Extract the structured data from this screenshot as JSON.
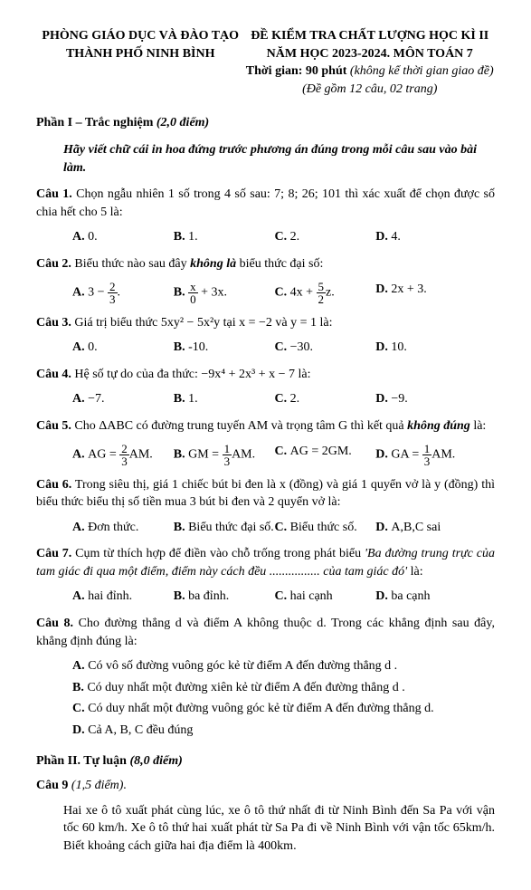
{
  "header": {
    "left1": "PHÒNG GIÁO DỤC VÀ ĐÀO TẠO",
    "left2": "THÀNH PHỐ NINH BÌNH",
    "right1": "ĐỀ KIỂM TRA CHẤT LƯỢNG HỌC KÌ II",
    "right2": "NĂM HỌC 2023-2024. MÔN TOÁN 7",
    "right3a": "Thời gian: 90 phút ",
    "right3b": "(không kể thời gian giao đề)",
    "right4": "(Đề gồm 12 câu, 02 trang)"
  },
  "part1": {
    "title": "Phần I – Trắc nghiệm ",
    "score": "(2,0 điểm)",
    "instr": "Hãy viết chữ cái in hoa đứng trước phương án đúng trong mỗi câu sau vào bài làm."
  },
  "q1": {
    "label": "Câu 1.",
    "text": " Chọn ngẫu nhiên 1 số trong 4 số sau: 7; 8; 26; 101 thì xác xuất để chọn được số chia hết cho 5 là:",
    "a": "0.",
    "b": "1.",
    "c": "2.",
    "d": "4."
  },
  "q2": {
    "label": "Câu 2.",
    "text": " Biểu thức nào sau đây ",
    "em": "không là",
    "text2": " biểu thức đại số:",
    "d": "2x + 3."
  },
  "q3": {
    "label": "Câu 3.",
    "text": " Giá trị biểu thức  5xy² − 5x²y tại  x = −2  và  y = 1 là:",
    "a": "0.",
    "b": "-10.",
    "c": "−30.",
    "d": "10."
  },
  "q4": {
    "label": "Câu 4.",
    "text": " Hệ số tự do của đa thức:  −9x⁴ + 2x³ + x − 7  là:",
    "a": "−7.",
    "b": "1.",
    "c": "2.",
    "d": "−9."
  },
  "q5": {
    "label": "Câu 5.",
    "text": " Cho ΔABC có đường trung tuyến AM và trọng tâm G thì kết quả ",
    "em": "không đúng",
    "text2": " là:",
    "c": "AG = 2GM."
  },
  "q6": {
    "label": "Câu 6.",
    "text": " Trong siêu thị, giá 1 chiếc bút bi đen là x (đồng) và giá 1 quyển vở là y (đồng) thì biểu thức biểu thị số tiền mua 3 bút bi đen và 2 quyển vở là:",
    "a": "Đơn thức.",
    "b": "Biểu thức đại số.",
    "c": "Biểu thức số.",
    "d": "A,B,C sai"
  },
  "q7": {
    "label": "Câu 7.",
    "text": " Cụm từ thích hợp để điền vào chỗ trống trong phát biểu  ",
    "em": "'Ba đường trung trực của tam giác đi qua một điểm, điểm này cách đều ................ của tam giác đó'",
    "text2": " là:",
    "a": "hai đỉnh.",
    "b": "ba đỉnh.",
    "c": "hai cạnh",
    "d": "ba cạnh"
  },
  "q8": {
    "label": "Câu 8.",
    "text": " Cho đường thẳng d và điểm A không thuộc d. Trong các khẳng định sau đây, khẳng định đúng là:",
    "oa": "Có vô số đường vuông góc kẻ từ điểm  A  đến đường thẳng  d .",
    "ob": "Có duy nhất một đường xiên kẻ từ điểm  A  đến đường thẳng  d .",
    "oc": "Có duy nhất một đường vuông góc kẻ từ điểm  A  đến đường thẳng  d.",
    "od": "Cả  A, B, C  đều đúng"
  },
  "part2": {
    "title": "Phần II. Tự luận ",
    "score": "(8,0 điểm)"
  },
  "q9": {
    "label": "Câu 9 ",
    "score": "(1,5 điểm).",
    "body": "Hai xe ô tô xuất phát cùng lúc, xe ô tô thứ nhất đi từ Ninh Bình đến Sa Pa với vận tốc 60 km/h. Xe ô tô thứ hai xuất phát từ Sa Pa đi về Ninh Bình với vận tốc 65km/h. Biết khoảng cách giữa hai địa điểm là 400km."
  }
}
